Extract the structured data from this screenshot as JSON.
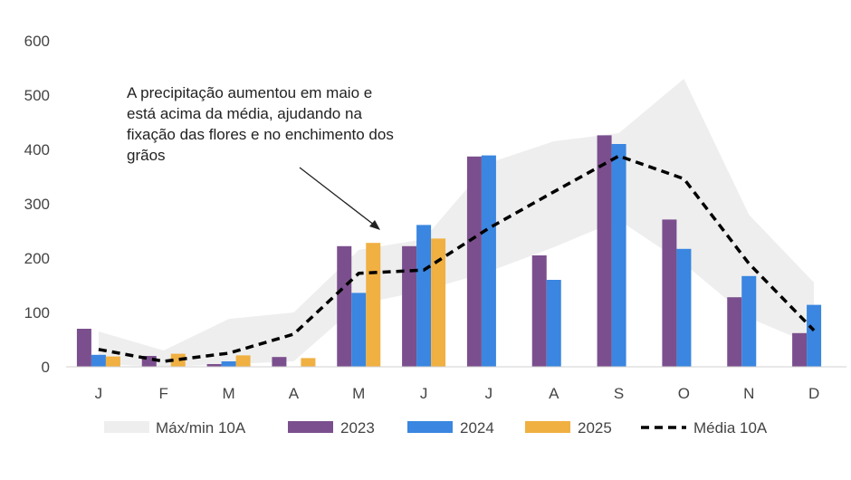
{
  "chart_data": {
    "type": "bar",
    "categories": [
      "J",
      "F",
      "M",
      "A",
      "M",
      "J",
      "J",
      "A",
      "S",
      "O",
      "N",
      "D"
    ],
    "ylim": [
      0,
      600
    ],
    "yticks": [
      0,
      100,
      200,
      300,
      400,
      500,
      600
    ],
    "grid": false,
    "legend_position": "bottom",
    "band": {
      "name": "Máx/min 10A",
      "color": "#eeeeee",
      "max": [
        65,
        30,
        88,
        100,
        215,
        235,
        375,
        415,
        430,
        530,
        280,
        155
      ],
      "min": [
        5,
        0,
        5,
        10,
        115,
        140,
        175,
        220,
        270,
        190,
        90,
        40
      ]
    },
    "series": [
      {
        "name": "2023",
        "color": "#7b4f8e",
        "values": [
          70,
          20,
          5,
          18,
          222,
          222,
          387,
          205,
          426,
          271,
          128,
          62
        ]
      },
      {
        "name": "2024",
        "color": "#3a86e0",
        "values": [
          22,
          0,
          10,
          0,
          136,
          261,
          389,
          160,
          410,
          217,
          167,
          114
        ]
      },
      {
        "name": "2025",
        "color": "#f0b042",
        "values": [
          19,
          24,
          21,
          16,
          228,
          236,
          null,
          null,
          null,
          null,
          null,
          null
        ]
      }
    ],
    "line": {
      "name": "Média 10A",
      "color": "#000000",
      "values": [
        32,
        10,
        25,
        60,
        172,
        178,
        255,
        322,
        388,
        346,
        190,
        67
      ]
    },
    "annotation": {
      "lines": [
        "A precipitação aumentou em maio e",
        "está acima da média, ajudando na",
        "fixação das flores e no enchimento dos",
        "grãos"
      ]
    }
  }
}
